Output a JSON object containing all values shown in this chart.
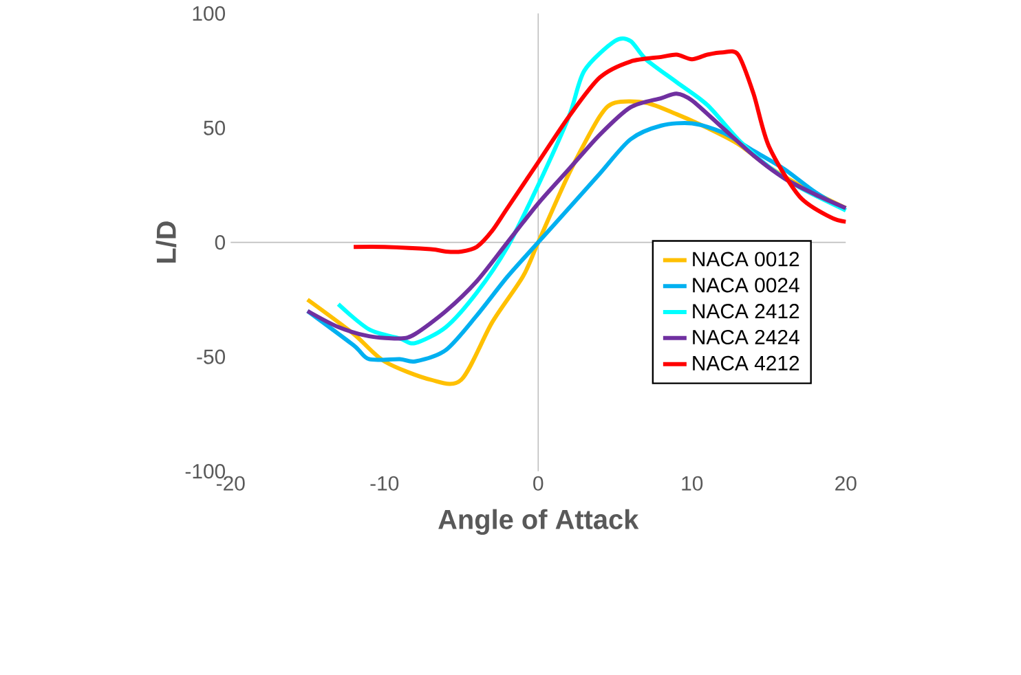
{
  "chart_data": {
    "type": "line",
    "xlabel": "Angle of Attack",
    "ylabel": "L/D",
    "xlim": [
      -20,
      20
    ],
    "ylim": [
      -100,
      100
    ],
    "xticks": [
      -20,
      -10,
      0,
      10,
      20
    ],
    "yticks": [
      -100,
      -50,
      0,
      50,
      100
    ],
    "legend": "bottom right",
    "marker": "none",
    "line_style": "solid",
    "series": [
      {
        "name": "NACA 0012",
        "color": "#ffc000",
        "x": [
          -15,
          -12,
          -10,
          -7,
          -5,
          -3,
          -1,
          0,
          2,
          4,
          5,
          7,
          9,
          11,
          13,
          15,
          17,
          20
        ],
        "values": [
          -25,
          -40,
          -52,
          -60,
          -60,
          -35,
          -15,
          0,
          30,
          55,
          61,
          61,
          56,
          50,
          43,
          33,
          25,
          15
        ]
      },
      {
        "name": "NACA 0024",
        "color": "#00b0f0",
        "x": [
          -15,
          -12,
          -11,
          -9,
          -8,
          -6,
          -4,
          -2,
          0,
          2,
          4,
          6,
          8,
          10,
          12,
          14,
          16,
          18,
          20
        ],
        "values": [
          -30,
          -45,
          -51,
          -51,
          -52,
          -47,
          -32,
          -15,
          0,
          15,
          30,
          45,
          51,
          52,
          48,
          40,
          32,
          22,
          14
        ]
      },
      {
        "name": "NACA 2412",
        "color": "#00ffff",
        "x": [
          -13,
          -11,
          -9,
          -8,
          -6,
          -4,
          -2,
          0,
          2,
          3,
          5,
          6,
          7,
          9,
          11,
          13,
          15,
          17,
          20
        ],
        "values": [
          -27,
          -38,
          -42,
          -44,
          -37,
          -22,
          -2,
          25,
          55,
          75,
          88,
          88,
          80,
          70,
          60,
          45,
          33,
          24,
          14
        ]
      },
      {
        "name": "NACA 2424",
        "color": "#7030a0",
        "x": [
          -15,
          -13,
          -11,
          -9,
          -8,
          -6,
          -4,
          -2,
          0,
          2,
          4,
          6,
          8,
          9,
          10,
          12,
          14,
          16,
          18,
          20
        ],
        "values": [
          -30,
          -37,
          -41,
          -42,
          -40,
          -30,
          -17,
          0,
          17,
          32,
          47,
          59,
          63,
          65,
          62,
          50,
          38,
          28,
          21,
          15
        ]
      },
      {
        "name": "NACA 4212",
        "color": "#ff0000",
        "x": [
          -12,
          -10,
          -7,
          -6,
          -5,
          -4,
          -3,
          -2,
          0,
          2,
          4,
          6,
          8,
          9,
          10,
          11,
          12,
          13,
          14,
          15,
          17,
          19,
          20
        ],
        "values": [
          -2,
          -2,
          -3,
          -4,
          -4,
          -2,
          5,
          15,
          35,
          55,
          72,
          79,
          81,
          82,
          80,
          82,
          83,
          82,
          65,
          42,
          20,
          11,
          9
        ]
      }
    ]
  }
}
